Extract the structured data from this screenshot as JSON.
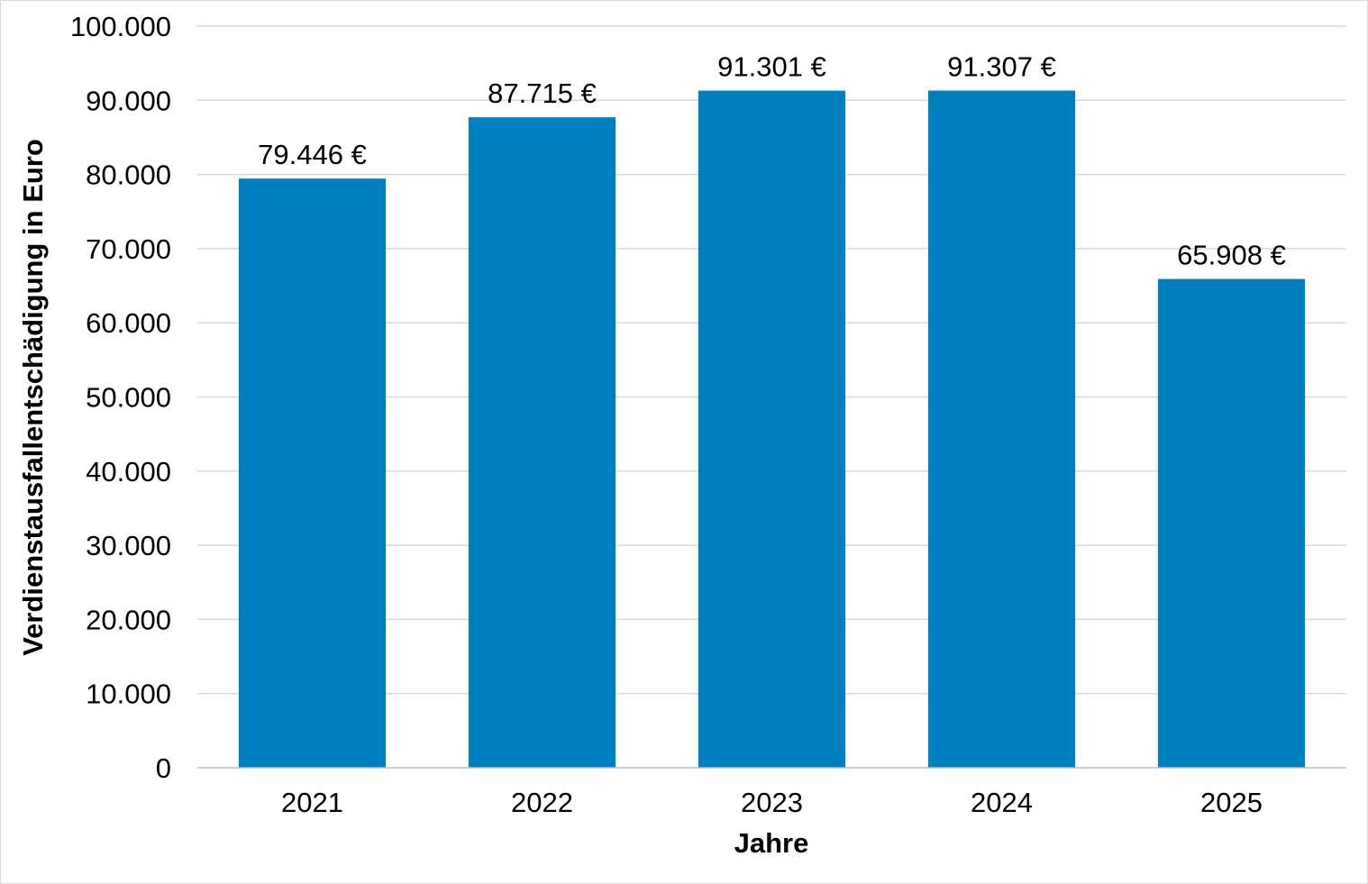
{
  "chart_data": {
    "type": "bar",
    "categories": [
      "2021",
      "2022",
      "2023",
      "2024",
      "2025"
    ],
    "values": [
      79446,
      87715,
      91301,
      91307,
      65908
    ],
    "data_labels": [
      "79.446 €",
      "87.715 €",
      "91.301 €",
      "91.307 €",
      "65.908 €"
    ],
    "title": "",
    "xlabel": "Jahre",
    "ylabel": "Verdienstausfallentschädigung in Euro",
    "ylim": [
      0,
      100000
    ],
    "yticks": [
      0,
      10000,
      20000,
      30000,
      40000,
      50000,
      60000,
      70000,
      80000,
      90000,
      100000
    ],
    "ytick_labels": [
      "0",
      "10.000",
      "20.000",
      "30.000",
      "40.000",
      "50.000",
      "60.000",
      "70.000",
      "80.000",
      "90.000",
      "100.000"
    ],
    "grid": true,
    "legend": "none",
    "bar_color": "#0080BE"
  }
}
